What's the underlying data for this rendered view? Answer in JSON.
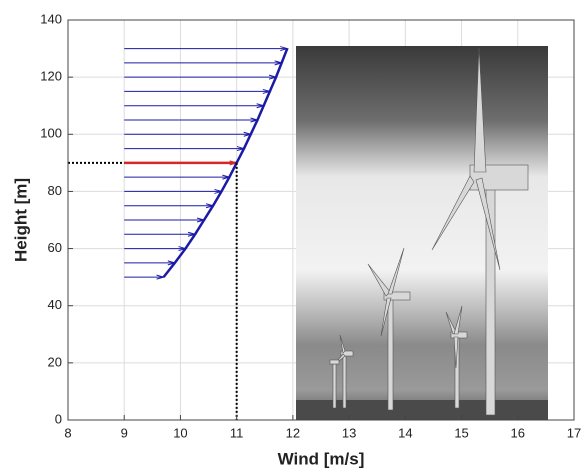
{
  "chart_data": {
    "type": "line",
    "xlabel": "Wind [m/s]",
    "ylabel": "Height [m]",
    "xlim": [
      8,
      17
    ],
    "ylim": [
      0,
      140
    ],
    "xticks": [
      8,
      9,
      10,
      11,
      12,
      13,
      14,
      15,
      16,
      17
    ],
    "yticks": [
      0,
      20,
      40,
      60,
      80,
      100,
      120,
      140
    ],
    "grid": true,
    "arrow_start": 9,
    "series": [
      {
        "color": "#1a1aa6",
        "x": [
          9.7,
          9.9,
          10.09,
          10.26,
          10.42,
          10.58,
          10.73,
          10.87,
          11.0,
          11.13,
          11.25,
          11.37,
          11.48,
          11.59,
          11.7,
          11.8,
          11.9
        ],
        "y": [
          50,
          55,
          60,
          65,
          70,
          75,
          80,
          85,
          90,
          95,
          100,
          105,
          110,
          115,
          120,
          125,
          130
        ]
      }
    ],
    "hub": {
      "wind": 11,
      "height": 90,
      "color": "#d62728"
    }
  }
}
